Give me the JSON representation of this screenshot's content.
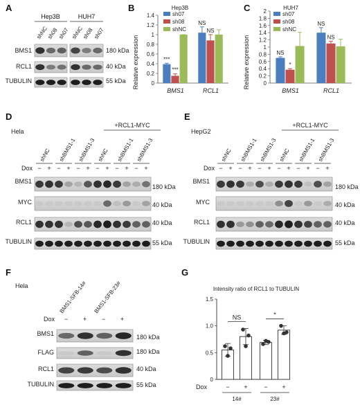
{
  "panels": {
    "A": {
      "label": "A",
      "groups": [
        "Hep3B",
        "HUH7"
      ],
      "lanes": [
        "shNC",
        "sh08",
        "sh07",
        "shNC",
        "sh08",
        "sh07"
      ],
      "rows": [
        {
          "name": "BMS1",
          "kda": "180 kDa"
        },
        {
          "name": "RCL1",
          "kda": "40 kDa"
        },
        {
          "name": "TUBULIN",
          "kda": "55 kDa"
        }
      ]
    },
    "D": {
      "label": "D",
      "cell": "Hela",
      "overexp": "+RCL1-MYC",
      "groups": [
        "shNC",
        "shBMS1-1",
        "shBMS1-3",
        "shNC",
        "shBMS1-1",
        "shBMS1-3"
      ],
      "dox_label": "Dox",
      "dox": [
        "−",
        "+",
        "−",
        "+",
        "−",
        "+",
        "−",
        "+",
        "−",
        "+",
        "−",
        "+"
      ],
      "rows": [
        {
          "name": "BMS1",
          "kda": "180 kDa"
        },
        {
          "name": "MYC",
          "kda": "40 kDa"
        },
        {
          "name": "RCL1",
          "kda": "40 kDa"
        },
        {
          "name": "TUBULIN",
          "kda": "55 kDa"
        }
      ]
    },
    "E": {
      "label": "E",
      "cell": "HepG2",
      "overexp": "+RCL1-MYC",
      "groups": [
        "shNC",
        "shBMS1-1",
        "shBMS1-3",
        "shNC",
        "shBMS1-1",
        "shBMS1-3"
      ],
      "dox_label": "Dox",
      "dox": [
        "−",
        "+",
        "−",
        "+",
        "−",
        "+",
        "−",
        "+",
        "−",
        "+",
        "−",
        "+"
      ],
      "rows": [
        {
          "name": "BMS1",
          "kda": "180 kDa"
        },
        {
          "name": "MYC",
          "kda": "40 kDa"
        },
        {
          "name": "RCL1",
          "kda": "40 kDa"
        },
        {
          "name": "TUBULIN",
          "kda": "55 kDa"
        }
      ]
    },
    "F": {
      "label": "F",
      "cell": "Hela",
      "groups": [
        "BMS1-SFB-14#",
        "BMS1-SFB-23#"
      ],
      "dox_label": "Dox",
      "dox": [
        "−",
        "+",
        "−",
        "+"
      ],
      "rows": [
        {
          "name": "BMS1",
          "kda": "180 kDa"
        },
        {
          "name": "FLAG",
          "kda": "180 kDa"
        },
        {
          "name": "RCL1",
          "kda": "40 kDa"
        },
        {
          "name": "TUBULIN",
          "kda": "55 kDa"
        }
      ]
    },
    "B": {
      "label": "B"
    },
    "C": {
      "label": "C"
    },
    "G": {
      "label": "G"
    }
  },
  "chart_data": [
    {
      "id": "B",
      "type": "bar",
      "title": "Hep3B",
      "ylabel": "Relative expression",
      "ylim": [
        0,
        1.4
      ],
      "yticks": [
        "0",
        "0.2",
        "0.4",
        "0.6",
        "0.8",
        "1",
        "1.2",
        "1.4"
      ],
      "categories": [
        "BMS1",
        "RCL1"
      ],
      "series": [
        {
          "name": "sh07",
          "color": "#4a7ebf",
          "values": [
            0.39,
            1.04
          ],
          "errors": [
            0.02,
            0.12
          ]
        },
        {
          "name": "sh08",
          "color": "#c0504d",
          "values": [
            0.15,
            0.88
          ],
          "errors": [
            0.04,
            0.12
          ]
        },
        {
          "name": "shNC",
          "color": "#9bbb59",
          "values": [
            1.0,
            1.0
          ],
          "errors": [
            0.0,
            0.1
          ]
        }
      ],
      "annotations": [
        {
          "category": 0,
          "series": 0,
          "text": "***"
        },
        {
          "category": 0,
          "series": 1,
          "text": "***"
        },
        {
          "category": 1,
          "series": 0,
          "text": "NS"
        },
        {
          "category": 1,
          "series": 1,
          "text": "NS"
        }
      ],
      "legend": "top-left"
    },
    {
      "id": "C",
      "type": "bar",
      "title": "HUH7",
      "ylabel": "Relative expression",
      "ylim": [
        0,
        2
      ],
      "yticks": [
        "0",
        "0.2",
        "0.4",
        "0.6",
        "0.8",
        "1",
        "1.2",
        "1.4",
        "1.6",
        "1.8",
        "2"
      ],
      "categories": [
        "BMS1",
        "RCL1"
      ],
      "series": [
        {
          "name": "sh07",
          "color": "#4a7ebf",
          "values": [
            0.7,
            1.4
          ],
          "errors": [
            0.03,
            0.14
          ]
        },
        {
          "name": "sh08",
          "color": "#c0504d",
          "values": [
            0.37,
            1.1
          ],
          "errors": [
            0.03,
            0.06
          ]
        },
        {
          "name": "shNC",
          "color": "#9bbb59",
          "values": [
            1.03,
            1.02
          ],
          "errors": [
            0.38,
            0.2
          ]
        }
      ],
      "annotations": [
        {
          "category": 0,
          "series": 0,
          "text": "NS"
        },
        {
          "category": 0,
          "series": 1,
          "text": "*"
        },
        {
          "category": 1,
          "series": 0,
          "text": "NS"
        },
        {
          "category": 1,
          "series": 1,
          "text": "NS"
        }
      ],
      "legend": "top-left"
    },
    {
      "id": "G",
      "type": "bar",
      "title": "Intensity ratio of RCL1 to TUBULIN",
      "ylim": [
        0,
        1.5
      ],
      "yticks": [
        "0",
        "0.5",
        "1.0",
        "1.5"
      ],
      "dox_label": "Dox",
      "dox": [
        "−",
        "+",
        "−",
        "+"
      ],
      "groups": [
        "14#",
        "23#"
      ],
      "values": [
        0.55,
        0.8,
        0.69,
        0.92
      ],
      "errors": [
        0.12,
        0.15,
        0.04,
        0.08
      ],
      "points": [
        [
          0.62,
          0.44,
          0.58
        ],
        [
          0.93,
          0.62,
          0.82
        ],
        [
          0.66,
          0.72,
          0.7
        ],
        [
          1.0,
          0.86,
          0.88
        ]
      ],
      "significance": [
        {
          "group": 0,
          "text": "NS"
        },
        {
          "group": 1,
          "text": "*"
        }
      ]
    }
  ]
}
